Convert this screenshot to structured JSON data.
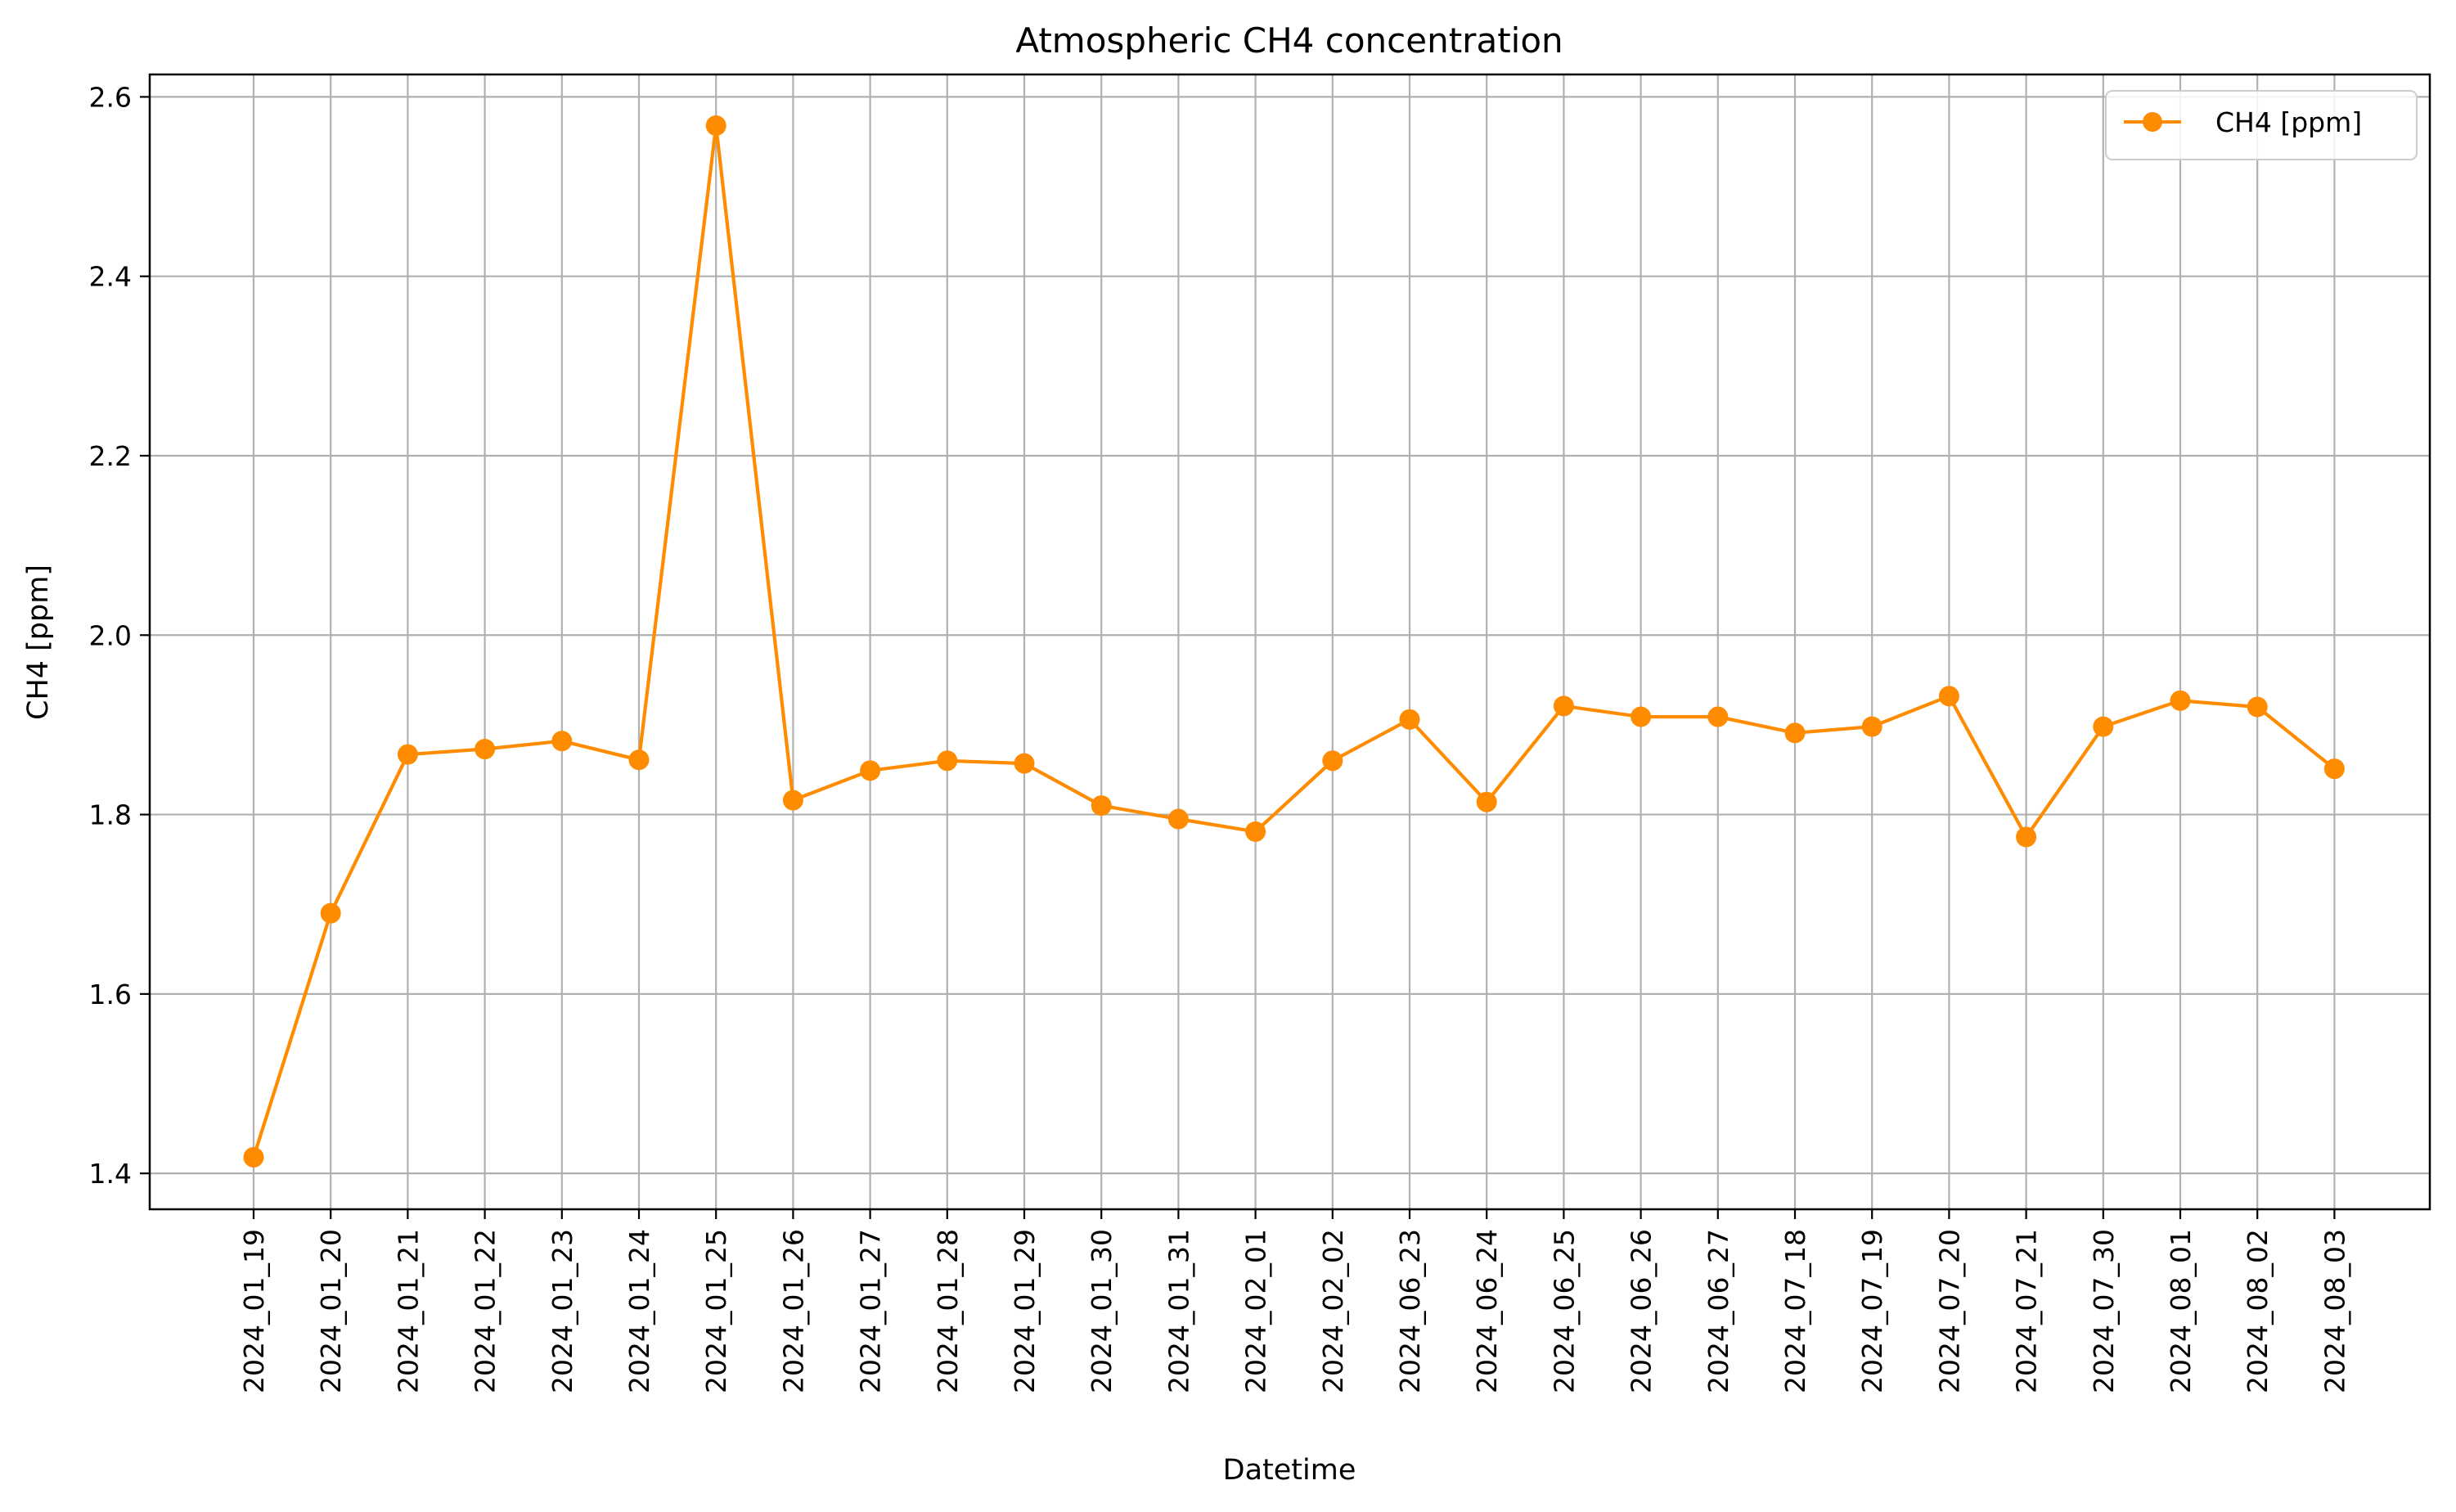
{
  "chart_data": {
    "type": "line",
    "title": "Atmospheric CH4 concentration",
    "xlabel": "Datetime",
    "ylabel": "CH4 [ppm]",
    "categories": [
      "2024_01_19",
      "2024_01_20",
      "2024_01_21",
      "2024_01_22",
      "2024_01_23",
      "2024_01_24",
      "2024_01_25",
      "2024_01_26",
      "2024_01_27",
      "2024_01_28",
      "2024_01_29",
      "2024_01_30",
      "2024_01_31",
      "2024_02_01",
      "2024_02_02",
      "2024_06_23",
      "2024_06_24",
      "2024_06_25",
      "2024_06_26",
      "2024_06_27",
      "2024_07_18",
      "2024_07_19",
      "2024_07_20",
      "2024_07_21",
      "2024_07_30",
      "2024_08_01",
      "2024_08_02",
      "2024_08_03"
    ],
    "series": [
      {
        "name": "CH4 [ppm]",
        "color": "#ff8c00",
        "marker": "circle",
        "values": [
          1.418,
          1.69,
          1.867,
          1.873,
          1.882,
          1.861,
          2.568,
          1.816,
          1.849,
          1.86,
          1.857,
          1.81,
          1.795,
          1.781,
          1.86,
          1.906,
          1.814,
          1.921,
          1.909,
          1.909,
          1.891,
          1.898,
          1.932,
          1.775,
          1.898,
          1.927,
          1.92,
          1.851
        ]
      }
    ],
    "yticks": [
      1.4,
      1.6,
      1.8,
      2.0,
      2.2,
      2.4,
      2.6
    ],
    "ylim": [
      1.36,
      2.625
    ],
    "grid": true,
    "legend": "top-right",
    "x_tick_rotation": "vertical"
  }
}
